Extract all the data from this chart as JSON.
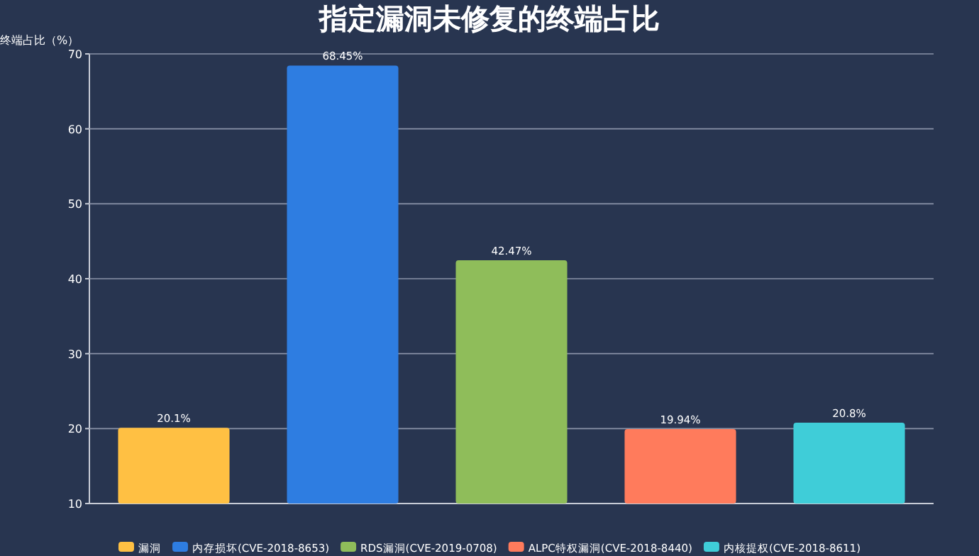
{
  "chart_data": {
    "type": "bar",
    "title": "指定漏洞未修复的终端占比",
    "ylabel": "终端占比（%）",
    "categories": [
      null,
      null,
      null,
      null,
      null
    ],
    "series": [
      {
        "name": "漏洞",
        "color": "#ffc043",
        "values": [
          20.1,
          null,
          null,
          null,
          null
        ],
        "value_labels": [
          "20.1%",
          null,
          null,
          null,
          null
        ]
      },
      {
        "name": "内存损坏(CVE-2018-8653)",
        "color": "#2e7de1",
        "values": [
          null,
          68.45,
          null,
          null,
          null
        ],
        "value_labels": [
          null,
          "68.45%",
          null,
          null,
          null
        ]
      },
      {
        "name": "RDS漏洞(CVE-2019-0708)",
        "color": "#8fbd5a",
        "values": [
          null,
          null,
          42.47,
          null,
          null
        ],
        "value_labels": [
          null,
          null,
          "42.47%",
          null,
          null
        ]
      },
      {
        "name": "ALPC特权漏洞(CVE-2018-8440)",
        "color": "#ff7b5c",
        "values": [
          null,
          null,
          null,
          19.94,
          null
        ],
        "value_labels": [
          null,
          null,
          null,
          "19.94%",
          null
        ]
      },
      {
        "name": "内核提权(CVE-2018-8611)",
        "color": "#3fcdd8",
        "values": [
          null,
          null,
          null,
          null,
          20.8
        ],
        "value_labels": [
          null,
          null,
          null,
          null,
          "20.8%"
        ]
      }
    ],
    "ylim": [
      10,
      70
    ],
    "yticks": [
      10,
      20,
      30,
      40,
      50,
      60,
      70
    ],
    "grid": "y",
    "legend": "bottom"
  }
}
